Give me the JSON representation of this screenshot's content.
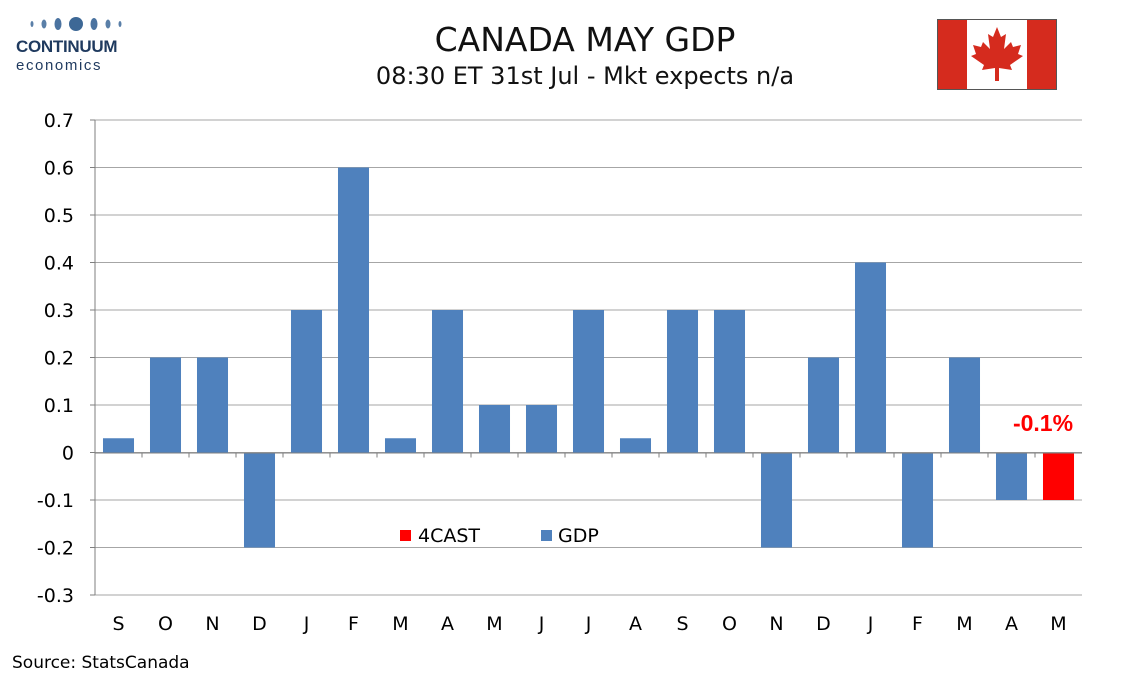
{
  "logo": {
    "name": "CONTINUUM",
    "sub": "economics"
  },
  "header": {
    "title": "CANADA MAY GDP",
    "subtitle": "08:30 ET 31st Jul - Mkt expects n/a"
  },
  "source": "Source: StatsCanada",
  "colors": {
    "gdp": "#4f81bd",
    "forecast": "#ff0000",
    "grid": "#a6a6a6",
    "flag_red": "#d52b1e"
  },
  "chart_data": {
    "type": "bar",
    "categories": [
      "S",
      "O",
      "N",
      "D",
      "J",
      "F",
      "M",
      "A",
      "M",
      "J",
      "J",
      "A",
      "S",
      "O",
      "N",
      "D",
      "J",
      "F",
      "M",
      "A",
      "M"
    ],
    "series": [
      {
        "name": "GDP",
        "values": [
          0.03,
          0.2,
          0.2,
          -0.2,
          0.3,
          0.6,
          0.03,
          0.3,
          0.1,
          0.1,
          0.3,
          0.03,
          0.3,
          0.3,
          -0.2,
          0.2,
          0.4,
          -0.2,
          0.2,
          -0.1,
          null
        ]
      },
      {
        "name": "4CAST",
        "values": [
          null,
          null,
          null,
          null,
          null,
          null,
          null,
          null,
          null,
          null,
          null,
          null,
          null,
          null,
          null,
          null,
          null,
          null,
          null,
          null,
          -0.1
        ]
      }
    ],
    "yticks": [
      "0.7",
      "0.6",
      "0.5",
      "0.4",
      "0.3",
      "0.2",
      "0.1",
      "0",
      "-0.1",
      "-0.2",
      "-0.3"
    ],
    "ylim": [
      -0.3,
      0.7
    ],
    "grid": true,
    "legend_placement": "bottom-center",
    "annotation": "-0.1%"
  }
}
